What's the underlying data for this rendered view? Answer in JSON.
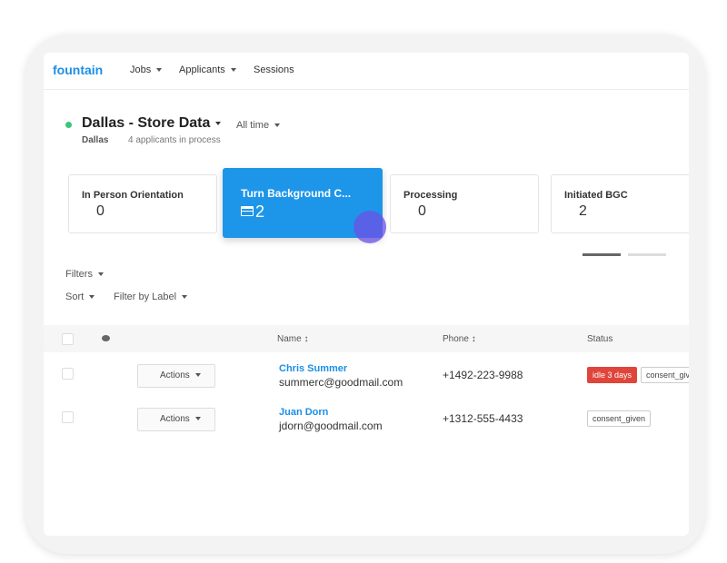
{
  "nav": {
    "logo": "fountain",
    "items": [
      "Jobs",
      "Applicants",
      "Sessions"
    ]
  },
  "header": {
    "title": "Dallas - Store Data",
    "period": "All time",
    "location": "Dallas",
    "summary": "4 applicants in process"
  },
  "stages": [
    {
      "label": "In Person Orientation",
      "count": 0
    },
    {
      "label": "Turn Background C...",
      "count": 2
    },
    {
      "label": "Processing",
      "count": 0
    },
    {
      "label": "Initiated BGC",
      "count": 2
    }
  ],
  "controls": {
    "filters": "Filters",
    "sort": "Sort",
    "label_filter": "Filter by Label"
  },
  "table": {
    "headers": [
      "Name",
      "Phone",
      "Status"
    ],
    "rows": [
      {
        "action": "Actions",
        "name": "Chris Summer",
        "email": "summerc@goodmail.com",
        "phone": "+1492-223-9988",
        "tags": [
          "idle 3 days",
          "consent_giv"
        ]
      },
      {
        "action": "Actions",
        "name": "Juan Dorn",
        "email": "jdorn@goodmail.com",
        "phone": "+1312-555-4433",
        "tags": [
          "consent_given"
        ]
      }
    ]
  }
}
